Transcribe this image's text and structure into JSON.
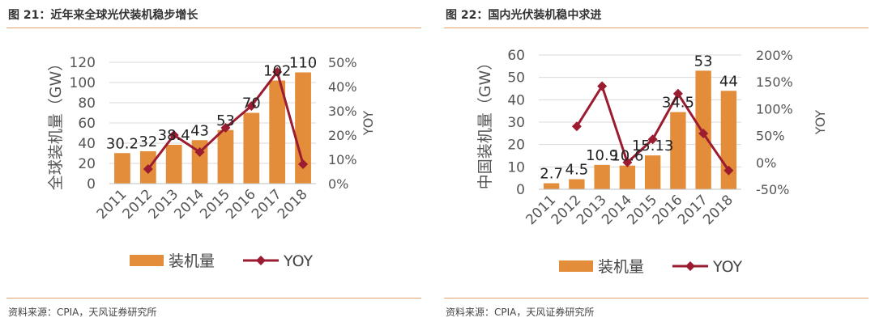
{
  "colors": {
    "bar": "#E38C3A",
    "line": "#9B1B30",
    "rule": "#E8A06A"
  },
  "charts": [
    {
      "title": "图 21：近年来全球光伏装机稳步增长",
      "source": "资料来源：CPIA，天风证券研究所",
      "legend": {
        "bar_label": "装机量",
        "line_label": "YOY"
      }
    },
    {
      "title": "图 22：国内光伏装机稳中求进",
      "source": "资料来源：CPIA，天风证券研究所",
      "legend": {
        "bar_label": "装机量",
        "line_label": "YOY"
      }
    }
  ],
  "chart_data": [
    {
      "type": "bar",
      "title": "近年来全球光伏装机稳步增长",
      "categories": [
        "2011",
        "2012",
        "2013",
        "2014",
        "2015",
        "2016",
        "2017",
        "2018"
      ],
      "series": [
        {
          "name": "装机量",
          "type": "bar",
          "axis": "left",
          "values": [
            30.2,
            32,
            38.4,
            43,
            53,
            70,
            102,
            110
          ],
          "data_labels": [
            "30.2",
            "32",
            "38.4",
            "43",
            "53",
            "70",
            "102",
            "110"
          ]
        },
        {
          "name": "YOY",
          "type": "line",
          "axis": "right",
          "values": [
            null,
            6,
            20,
            13,
            23,
            32,
            46,
            8
          ]
        }
      ],
      "ylabel": "全球装机量（GW）",
      "y2label": "YOY",
      "ylim": [
        0,
        120
      ],
      "yticks": [
        "0",
        "20",
        "40",
        "60",
        "80",
        "100",
        "120"
      ],
      "y2lim": [
        0,
        50
      ],
      "y2ticks": [
        "0%",
        "10%",
        "20%",
        "30%",
        "40%",
        "50%"
      ],
      "legend_position": "bottom"
    },
    {
      "type": "bar",
      "title": "国内光伏装机稳中求进",
      "categories": [
        "2011",
        "2012",
        "2013",
        "2014",
        "2015",
        "2016",
        "2017",
        "2018"
      ],
      "series": [
        {
          "name": "装机量",
          "type": "bar",
          "axis": "left",
          "values": [
            2.7,
            4.5,
            10.9,
            10.6,
            15.13,
            34.5,
            53,
            44
          ],
          "data_labels": [
            "2.7",
            "4.5",
            "10.9",
            "10.6",
            "15.13",
            "34.5",
            "53",
            "44"
          ]
        },
        {
          "name": "YOY",
          "type": "line",
          "axis": "right",
          "values": [
            null,
            67,
            142,
            0,
            43,
            128,
            54,
            -15
          ]
        }
      ],
      "ylabel": "中国装机量（GW）",
      "y2label": "YOY",
      "ylim": [
        0,
        60
      ],
      "yticks": [
        "0",
        "10",
        "20",
        "30",
        "40",
        "50",
        "60"
      ],
      "y2lim": [
        -50,
        200
      ],
      "y2ticks": [
        "-50%",
        "0%",
        "50%",
        "100%",
        "150%",
        "200%"
      ],
      "legend_position": "bottom"
    }
  ]
}
